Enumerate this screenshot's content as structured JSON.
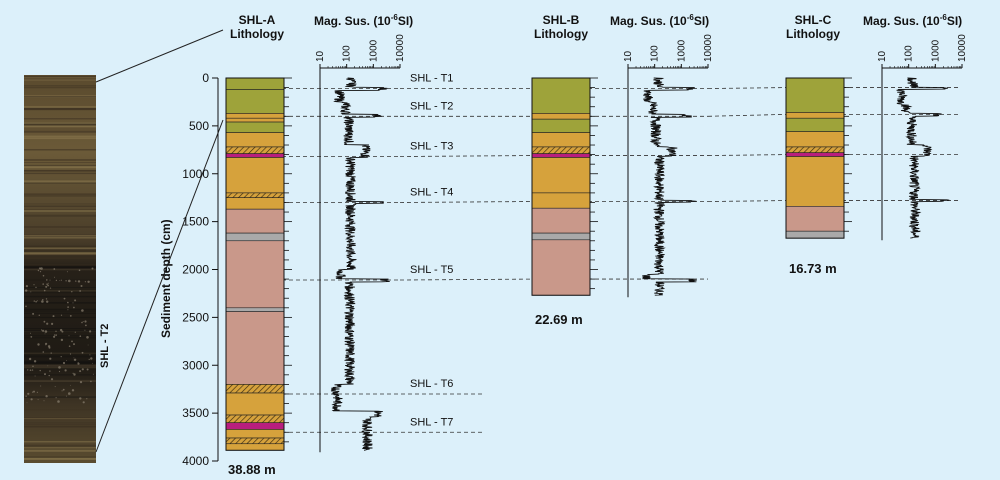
{
  "figure": {
    "y_axis_label": "Sediment depth (cm)",
    "y_ticks": [
      0,
      500,
      1000,
      1500,
      2000,
      2500,
      3000,
      3500,
      4000
    ],
    "photo_label": "SHL - T2",
    "mag_ticks": [
      "10",
      "100",
      "1000",
      "10000"
    ],
    "colors": {
      "background": "#dcf0fa",
      "olive": "#9ea33a",
      "ochre": "#d6a23c",
      "pink": "#c9988a",
      "grey": "#a9a9a9",
      "magenta": "#b81e7e"
    }
  },
  "cores": [
    {
      "id": "a",
      "name": "SHL-A",
      "lithology_label": "Lithology",
      "mag_label": "Mag. Sus. (10",
      "mag_sup": "-6",
      "mag_unit": "SI)",
      "length_label": "38.88 m",
      "depth_cm": 3888,
      "layers": [
        {
          "top": 0,
          "bottom": 120,
          "type": "olive"
        },
        {
          "top": 120,
          "bottom": 370,
          "type": "olive"
        },
        {
          "top": 370,
          "bottom": 420,
          "type": "ochre"
        },
        {
          "top": 420,
          "bottom": 460,
          "type": "ochre"
        },
        {
          "top": 460,
          "bottom": 570,
          "type": "olive"
        },
        {
          "top": 570,
          "bottom": 720,
          "type": "ochre"
        },
        {
          "top": 720,
          "bottom": 790,
          "type": "hatch"
        },
        {
          "top": 790,
          "bottom": 830,
          "type": "magenta"
        },
        {
          "top": 830,
          "bottom": 1200,
          "type": "ochre"
        },
        {
          "top": 1200,
          "bottom": 1250,
          "type": "hatch"
        },
        {
          "top": 1250,
          "bottom": 1370,
          "type": "ochre"
        },
        {
          "top": 1370,
          "bottom": 1620,
          "type": "pink"
        },
        {
          "top": 1620,
          "bottom": 1700,
          "type": "grey"
        },
        {
          "top": 1700,
          "bottom": 2400,
          "type": "pink"
        },
        {
          "top": 2400,
          "bottom": 2440,
          "type": "grey"
        },
        {
          "top": 2440,
          "bottom": 3200,
          "type": "pink"
        },
        {
          "top": 3200,
          "bottom": 3290,
          "type": "hatch"
        },
        {
          "top": 3290,
          "bottom": 3520,
          "type": "ochre"
        },
        {
          "top": 3520,
          "bottom": 3600,
          "type": "hatch"
        },
        {
          "top": 3600,
          "bottom": 3670,
          "type": "magenta"
        },
        {
          "top": 3670,
          "bottom": 3760,
          "type": "ochre"
        },
        {
          "top": 3760,
          "bottom": 3820,
          "type": "hatch"
        },
        {
          "top": 3820,
          "bottom": 3888,
          "type": "ochre"
        }
      ]
    },
    {
      "id": "b",
      "name": "SHL-B",
      "lithology_label": "Lithology",
      "mag_label": "Mag. Sus. (10",
      "mag_sup": "-6",
      "mag_unit": "SI)",
      "length_label": "22.69 m",
      "depth_cm": 2269,
      "layers": [
        {
          "top": 0,
          "bottom": 370,
          "type": "olive"
        },
        {
          "top": 370,
          "bottom": 430,
          "type": "ochre"
        },
        {
          "top": 430,
          "bottom": 570,
          "type": "olive"
        },
        {
          "top": 570,
          "bottom": 720,
          "type": "ochre"
        },
        {
          "top": 720,
          "bottom": 790,
          "type": "hatch"
        },
        {
          "top": 790,
          "bottom": 830,
          "type": "magenta"
        },
        {
          "top": 830,
          "bottom": 1200,
          "type": "ochre"
        },
        {
          "top": 1200,
          "bottom": 1360,
          "type": "ochre"
        },
        {
          "top": 1360,
          "bottom": 1620,
          "type": "pink"
        },
        {
          "top": 1620,
          "bottom": 1690,
          "type": "grey"
        },
        {
          "top": 1690,
          "bottom": 2269,
          "type": "pink"
        }
      ]
    },
    {
      "id": "c",
      "name": "SHL-C",
      "lithology_label": "Lithology",
      "mag_label": "Mag. Sus. (10",
      "mag_sup": "-6",
      "mag_unit": "SI)",
      "length_label": "16.73 m",
      "depth_cm": 1673,
      "layers": [
        {
          "top": 0,
          "bottom": 360,
          "type": "olive"
        },
        {
          "top": 360,
          "bottom": 420,
          "type": "ochre"
        },
        {
          "top": 420,
          "bottom": 560,
          "type": "olive"
        },
        {
          "top": 560,
          "bottom": 720,
          "type": "ochre"
        },
        {
          "top": 720,
          "bottom": 780,
          "type": "hatch"
        },
        {
          "top": 780,
          "bottom": 820,
          "type": "magenta"
        },
        {
          "top": 820,
          "bottom": 1340,
          "type": "ochre"
        },
        {
          "top": 1340,
          "bottom": 1600,
          "type": "pink"
        },
        {
          "top": 1600,
          "bottom": 1673,
          "type": "grey"
        }
      ]
    }
  ],
  "tephra": [
    {
      "label": "SHL - T1",
      "depth_a": 110,
      "depth_b": 110,
      "depth_c": 100
    },
    {
      "label": "SHL - T2",
      "depth_a": 400,
      "depth_b": 400,
      "depth_c": 380
    },
    {
      "label": "SHL - T3",
      "depth_a": 820,
      "depth_b": 810,
      "depth_c": 800
    },
    {
      "label": "SHL - T4",
      "depth_a": 1300,
      "depth_b": 1290,
      "depth_c": 1280
    },
    {
      "label": "SHL - T5",
      "depth_a": 2110,
      "depth_b": 2100
    },
    {
      "label": "SHL - T6",
      "depth_a": 3300
    },
    {
      "label": "SHL - T7",
      "depth_a": 3700
    }
  ]
}
